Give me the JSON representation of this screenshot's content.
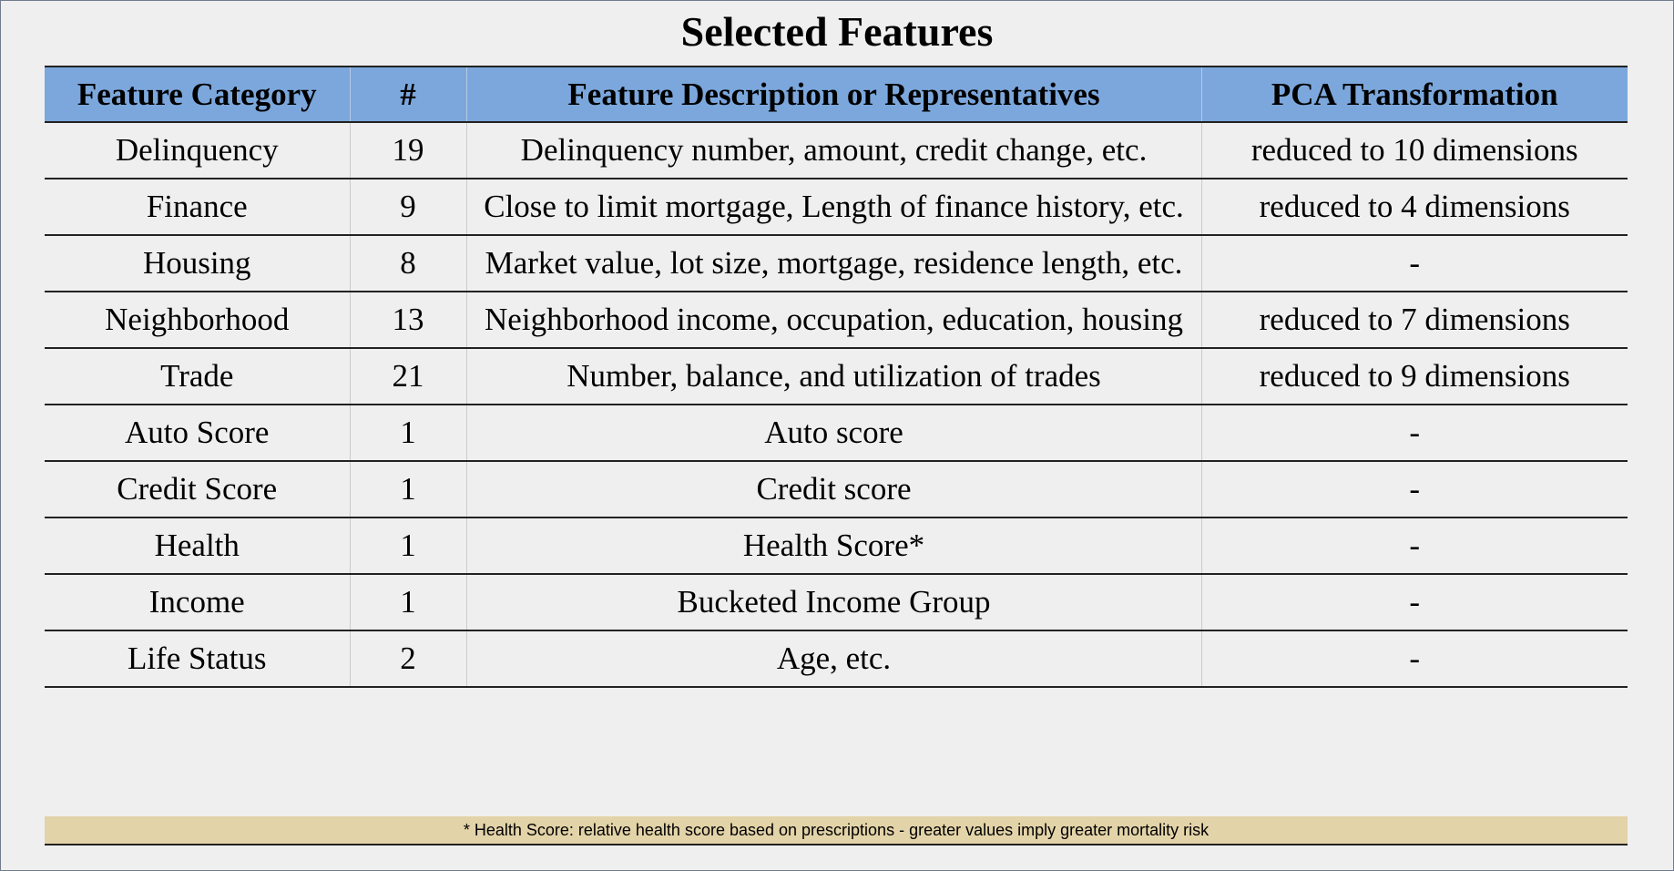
{
  "title": "Selected Features",
  "table": {
    "headers": [
      "Feature Category",
      "#",
      "Feature Description or Representatives",
      "PCA Transformation"
    ],
    "rows": [
      [
        "Delinquency",
        "19",
        "Delinquency number, amount, credit change, etc.",
        "reduced to 10 dimensions"
      ],
      [
        "Finance",
        "9",
        "Close to limit mortgage, Length of finance history, etc.",
        "reduced to 4 dimensions"
      ],
      [
        "Housing",
        "8",
        "Market value, lot size, mortgage, residence length, etc.",
        "-"
      ],
      [
        "Neighborhood",
        "13",
        "Neighborhood income, occupation, education, housing",
        "reduced to 7 dimensions"
      ],
      [
        "Trade",
        "21",
        "Number, balance, and utilization of trades",
        "reduced to 9 dimensions"
      ],
      [
        "Auto Score",
        "1",
        "Auto score",
        "-"
      ],
      [
        "Credit Score",
        "1",
        "Credit score",
        "-"
      ],
      [
        "Health",
        "1",
        "Health Score*",
        "-"
      ],
      [
        "Income",
        "1",
        "Bucketed Income Group",
        "-"
      ],
      [
        "Life Status",
        "2",
        "Age, etc.",
        "-"
      ]
    ]
  },
  "footnote": "* Health Score: relative health score based on prescriptions - greater values imply greater mortality risk"
}
